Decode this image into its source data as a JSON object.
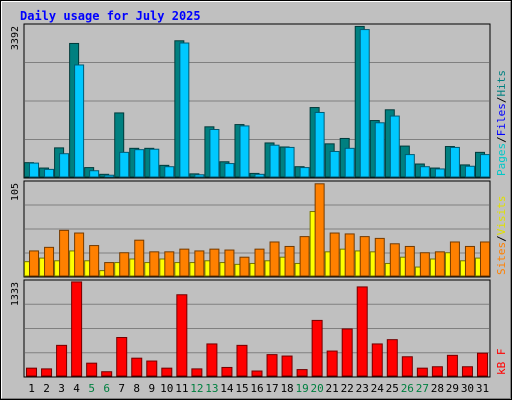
{
  "chart_data": {
    "type": "bar",
    "title": "Daily usage for July 2025",
    "categories": [
      "1",
      "2",
      "3",
      "4",
      "5",
      "6",
      "7",
      "8",
      "9",
      "10",
      "11",
      "12",
      "13",
      "14",
      "15",
      "16",
      "17",
      "18",
      "19",
      "20",
      "21",
      "22",
      "23",
      "24",
      "25",
      "26",
      "27",
      "28",
      "29",
      "30",
      "31"
    ],
    "weekend_days": [
      "5",
      "6",
      "12",
      "13",
      "19",
      "20",
      "26",
      "27"
    ],
    "panels": [
      {
        "name": "hits-files-pages",
        "ymax": 3392,
        "ymax_label": "3392",
        "side_labels": [
          "Pages",
          "/",
          "Files",
          "/",
          "Hits"
        ],
        "series": [
          {
            "name": "Hits",
            "color": "#008080",
            "values": [
              320,
              200,
              650,
              2980,
              210,
              60,
              1430,
              640,
              640,
              260,
              3040,
              70,
              1120,
              340,
              1170,
              80,
              760,
              670,
              230,
              1550,
              740,
              860,
              3360,
              1260,
              1500,
              690,
              290,
              200,
              680,
              270,
              550
            ]
          },
          {
            "name": "Files",
            "color": "#00c8ff",
            "values": [
              310,
              170,
              520,
              2500,
              140,
              40,
              550,
              610,
              620,
              230,
              2990,
              50,
              1060,
              300,
              1140,
              60,
              710,
              660,
              210,
              1440,
              570,
              640,
              3290,
              1210,
              1360,
              500,
              230,
              180,
              660,
              240,
              500
            ]
          },
          {
            "name": "Pages",
            "color": "#00c8c8",
            "values": []
          }
        ]
      },
      {
        "name": "visits-sites",
        "ymax": 105,
        "ymax_label": "105",
        "side_labels": [
          "Sites",
          "/",
          "Visits"
        ],
        "series": [
          {
            "name": "Visits",
            "color": "#ffff00",
            "values": [
              16,
              20,
              17,
              28,
              17,
              6,
              15,
              19,
              15,
              19,
              15,
              15,
              17,
              15,
              13,
              14,
              17,
              21,
              14,
              72,
              27,
              30,
              28,
              27,
              14,
              21,
              10,
              19,
              26,
              17,
              20
            ]
          },
          {
            "name": "Sites",
            "color": "#ff8000",
            "values": [
              28,
              32,
              51,
              48,
              34,
              15,
              26,
              40,
              27,
              27,
              30,
              28,
              30,
              29,
              21,
              30,
              38,
              33,
              44,
              103,
              48,
              47,
              44,
              42,
              36,
              33,
              26,
              27,
              38,
              33,
              38
            ]
          }
        ]
      },
      {
        "name": "kbf",
        "ymax": 1333,
        "ymax_label": "1333",
        "side_labels": [
          "kB F"
        ],
        "series": [
          {
            "name": "kB F",
            "color": "#ff0000",
            "values": [
              110,
              100,
              430,
              1320,
              180,
              60,
              540,
              250,
              210,
              110,
              1140,
              100,
              450,
              120,
              430,
              70,
              300,
              280,
              90,
              780,
              350,
              660,
              1250,
              450,
              510,
              270,
              110,
              130,
              290,
              130,
              320
            ]
          }
        ]
      }
    ],
    "grid": true
  }
}
